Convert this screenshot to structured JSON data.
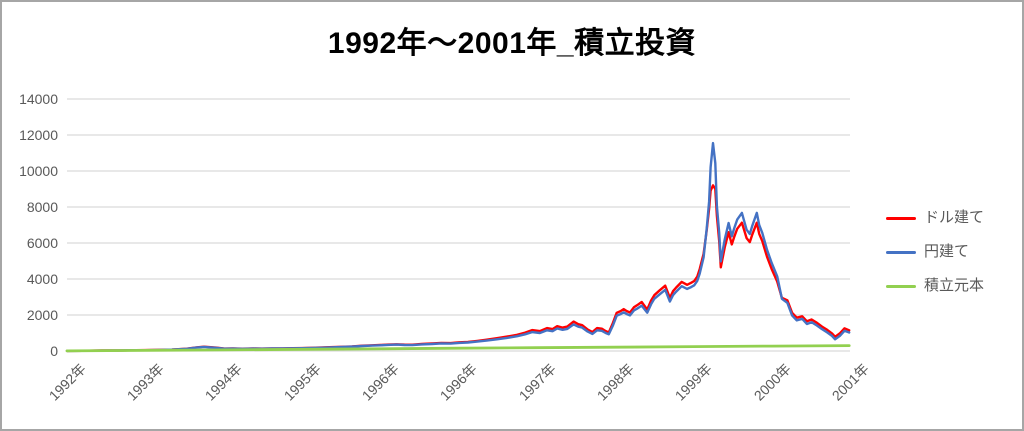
{
  "title": "1992年～2001年_積立投資",
  "chart_data": {
    "type": "line",
    "title": "1992年～2001年_積立投資",
    "x_categories": [
      "1992年",
      "1993年",
      "1994年",
      "1995年",
      "1996年",
      "1996年",
      "1997年",
      "1998年",
      "1999年",
      "2000年",
      "2001年"
    ],
    "y_ticks": [
      0,
      2000,
      4000,
      6000,
      8000,
      10000,
      12000,
      14000
    ],
    "y_min": 0,
    "y_max": 14000,
    "grid": true,
    "legend_position": "right",
    "x_note": "points use t = fraction of time axis from 1992 to 2001",
    "style": {
      "axis_text_color": "#595959",
      "gridline_color": "#d9d9d9",
      "frame_border_color": "#a6a6a6",
      "background": "#ffffff"
    },
    "series": [
      {
        "name": "ドル建て",
        "key": "usd",
        "color": "#ff0000",
        "points": [
          [
            0.0,
            5
          ],
          [
            0.02,
            13
          ],
          [
            0.045,
            26
          ],
          [
            0.07,
            35
          ],
          [
            0.1,
            48
          ],
          [
            0.12,
            64
          ],
          [
            0.134,
            80
          ],
          [
            0.153,
            128
          ],
          [
            0.165,
            200
          ],
          [
            0.175,
            240
          ],
          [
            0.19,
            188
          ],
          [
            0.201,
            136
          ],
          [
            0.212,
            138
          ],
          [
            0.224,
            128
          ],
          [
            0.238,
            138
          ],
          [
            0.249,
            134
          ],
          [
            0.262,
            144
          ],
          [
            0.275,
            147
          ],
          [
            0.288,
            155
          ],
          [
            0.3,
            162
          ],
          [
            0.313,
            178
          ],
          [
            0.326,
            194
          ],
          [
            0.34,
            215
          ],
          [
            0.351,
            232
          ],
          [
            0.364,
            258
          ],
          [
            0.377,
            295
          ],
          [
            0.39,
            316
          ],
          [
            0.4,
            332
          ],
          [
            0.41,
            358
          ],
          [
            0.421,
            374
          ],
          [
            0.431,
            353
          ],
          [
            0.441,
            350
          ],
          [
            0.453,
            388
          ],
          [
            0.466,
            415
          ],
          [
            0.478,
            447
          ],
          [
            0.49,
            438
          ],
          [
            0.501,
            485
          ],
          [
            0.512,
            508
          ],
          [
            0.524,
            563
          ],
          [
            0.536,
            630
          ],
          [
            0.549,
            710
          ],
          [
            0.562,
            800
          ],
          [
            0.575,
            900
          ],
          [
            0.585,
            1025
          ],
          [
            0.594,
            1160
          ],
          [
            0.604,
            1105
          ],
          [
            0.613,
            1270
          ],
          [
            0.62,
            1215
          ],
          [
            0.626,
            1380
          ],
          [
            0.633,
            1300
          ],
          [
            0.639,
            1355
          ],
          [
            0.647,
            1635
          ],
          [
            0.653,
            1490
          ],
          [
            0.658,
            1435
          ],
          [
            0.665,
            1190
          ],
          [
            0.671,
            1050
          ],
          [
            0.677,
            1270
          ],
          [
            0.683,
            1240
          ],
          [
            0.688,
            1105
          ],
          [
            0.692,
            1030
          ],
          [
            0.697,
            1545
          ],
          [
            0.702,
            2120
          ],
          [
            0.707,
            2215
          ],
          [
            0.711,
            2330
          ],
          [
            0.715,
            2215
          ],
          [
            0.719,
            2140
          ],
          [
            0.724,
            2430
          ],
          [
            0.728,
            2540
          ],
          [
            0.734,
            2720
          ],
          [
            0.741,
            2300
          ],
          [
            0.746,
            2805
          ],
          [
            0.75,
            3100
          ],
          [
            0.757,
            3370
          ],
          [
            0.764,
            3630
          ],
          [
            0.77,
            2950
          ],
          [
            0.774,
            3320
          ],
          [
            0.778,
            3530
          ],
          [
            0.785,
            3840
          ],
          [
            0.792,
            3680
          ],
          [
            0.797,
            3790
          ],
          [
            0.801,
            3890
          ],
          [
            0.805,
            4140
          ],
          [
            0.808,
            4550
          ],
          [
            0.813,
            5400
          ],
          [
            0.817,
            6700
          ],
          [
            0.82,
            7900
          ],
          [
            0.822,
            8900
          ],
          [
            0.825,
            9200
          ],
          [
            0.828,
            9000
          ],
          [
            0.83,
            7500
          ],
          [
            0.833,
            6100
          ],
          [
            0.835,
            4650
          ],
          [
            0.84,
            5750
          ],
          [
            0.845,
            6600
          ],
          [
            0.849,
            5920
          ],
          [
            0.852,
            6320
          ],
          [
            0.856,
            6790
          ],
          [
            0.862,
            7130
          ],
          [
            0.868,
            6270
          ],
          [
            0.872,
            6050
          ],
          [
            0.875,
            6440
          ],
          [
            0.881,
            7130
          ],
          [
            0.884,
            6510
          ],
          [
            0.888,
            6100
          ],
          [
            0.894,
            5240
          ],
          [
            0.9,
            4550
          ],
          [
            0.907,
            3860
          ],
          [
            0.913,
            2950
          ],
          [
            0.92,
            2810
          ],
          [
            0.926,
            2120
          ],
          [
            0.932,
            1850
          ],
          [
            0.939,
            1930
          ],
          [
            0.945,
            1650
          ],
          [
            0.951,
            1750
          ],
          [
            0.958,
            1560
          ],
          [
            0.964,
            1360
          ],
          [
            0.971,
            1170
          ],
          [
            0.977,
            980
          ],
          [
            0.981,
            790
          ],
          [
            0.987,
            980
          ],
          [
            0.993,
            1260
          ],
          [
            0.999,
            1150
          ]
        ]
      },
      {
        "name": "円建て",
        "key": "jpy",
        "color": "#4472c4",
        "points": [
          [
            0.0,
            5
          ],
          [
            0.02,
            12
          ],
          [
            0.045,
            25
          ],
          [
            0.07,
            33
          ],
          [
            0.1,
            45
          ],
          [
            0.12,
            60
          ],
          [
            0.134,
            75
          ],
          [
            0.153,
            120
          ],
          [
            0.165,
            190
          ],
          [
            0.175,
            230
          ],
          [
            0.19,
            180
          ],
          [
            0.201,
            130
          ],
          [
            0.212,
            132
          ],
          [
            0.224,
            122
          ],
          [
            0.238,
            132
          ],
          [
            0.249,
            128
          ],
          [
            0.262,
            138
          ],
          [
            0.275,
            140
          ],
          [
            0.288,
            148
          ],
          [
            0.3,
            155
          ],
          [
            0.313,
            170
          ],
          [
            0.326,
            185
          ],
          [
            0.34,
            205
          ],
          [
            0.351,
            220
          ],
          [
            0.364,
            245
          ],
          [
            0.377,
            280
          ],
          [
            0.39,
            300
          ],
          [
            0.4,
            315
          ],
          [
            0.41,
            340
          ],
          [
            0.421,
            355
          ],
          [
            0.431,
            335
          ],
          [
            0.441,
            330
          ],
          [
            0.453,
            365
          ],
          [
            0.466,
            390
          ],
          [
            0.478,
            420
          ],
          [
            0.49,
            410
          ],
          [
            0.501,
            450
          ],
          [
            0.512,
            470
          ],
          [
            0.524,
            520
          ],
          [
            0.536,
            580
          ],
          [
            0.549,
            650
          ],
          [
            0.562,
            730
          ],
          [
            0.575,
            820
          ],
          [
            0.585,
            930
          ],
          [
            0.594,
            1050
          ],
          [
            0.604,
            1000
          ],
          [
            0.613,
            1150
          ],
          [
            0.62,
            1100
          ],
          [
            0.626,
            1250
          ],
          [
            0.633,
            1180
          ],
          [
            0.639,
            1230
          ],
          [
            0.647,
            1480
          ],
          [
            0.653,
            1350
          ],
          [
            0.658,
            1300
          ],
          [
            0.665,
            1080
          ],
          [
            0.671,
            950
          ],
          [
            0.677,
            1150
          ],
          [
            0.683,
            1120
          ],
          [
            0.688,
            1000
          ],
          [
            0.692,
            930
          ],
          [
            0.697,
            1400
          ],
          [
            0.702,
            1960
          ],
          [
            0.707,
            2050
          ],
          [
            0.711,
            2150
          ],
          [
            0.715,
            2050
          ],
          [
            0.719,
            1980
          ],
          [
            0.724,
            2250
          ],
          [
            0.728,
            2350
          ],
          [
            0.734,
            2520
          ],
          [
            0.741,
            2130
          ],
          [
            0.746,
            2600
          ],
          [
            0.75,
            2900
          ],
          [
            0.757,
            3150
          ],
          [
            0.764,
            3400
          ],
          [
            0.77,
            2750
          ],
          [
            0.774,
            3100
          ],
          [
            0.778,
            3300
          ],
          [
            0.785,
            3600
          ],
          [
            0.792,
            3450
          ],
          [
            0.797,
            3550
          ],
          [
            0.801,
            3650
          ],
          [
            0.805,
            3900
          ],
          [
            0.808,
            4300
          ],
          [
            0.813,
            5200
          ],
          [
            0.817,
            6800
          ],
          [
            0.82,
            8300
          ],
          [
            0.822,
            10200
          ],
          [
            0.825,
            11550
          ],
          [
            0.828,
            10440
          ],
          [
            0.83,
            8040
          ],
          [
            0.833,
            6560
          ],
          [
            0.835,
            4980
          ],
          [
            0.84,
            6190
          ],
          [
            0.845,
            7110
          ],
          [
            0.849,
            6370
          ],
          [
            0.852,
            6800
          ],
          [
            0.856,
            7300
          ],
          [
            0.862,
            7670
          ],
          [
            0.868,
            6740
          ],
          [
            0.872,
            6500
          ],
          [
            0.875,
            6930
          ],
          [
            0.881,
            7670
          ],
          [
            0.884,
            7000
          ],
          [
            0.888,
            6560
          ],
          [
            0.894,
            5630
          ],
          [
            0.9,
            4890
          ],
          [
            0.907,
            4150
          ],
          [
            0.913,
            2900
          ],
          [
            0.92,
            2670
          ],
          [
            0.926,
            1980
          ],
          [
            0.932,
            1700
          ],
          [
            0.939,
            1790
          ],
          [
            0.945,
            1500
          ],
          [
            0.951,
            1600
          ],
          [
            0.958,
            1410
          ],
          [
            0.964,
            1220
          ],
          [
            0.971,
            1030
          ],
          [
            0.977,
            840
          ],
          [
            0.981,
            650
          ],
          [
            0.987,
            840
          ],
          [
            0.993,
            1120
          ],
          [
            0.999,
            1030
          ]
        ]
      },
      {
        "name": "積立元本",
        "key": "principal",
        "color": "#92d050",
        "points": [
          [
            0.0,
            3
          ],
          [
            0.1,
            33
          ],
          [
            0.2,
            63
          ],
          [
            0.3,
            93
          ],
          [
            0.4,
            123
          ],
          [
            0.5,
            153
          ],
          [
            0.6,
            183
          ],
          [
            0.7,
            213
          ],
          [
            0.8,
            243
          ],
          [
            0.9,
            273
          ],
          [
            0.999,
            302
          ]
        ]
      }
    ]
  }
}
